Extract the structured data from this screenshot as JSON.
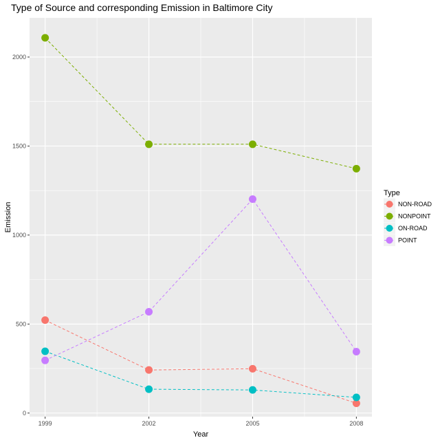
{
  "chart_data": {
    "type": "line",
    "title": "Type of Source and corresponding Emission in Baltimore City",
    "xlabel": "Year",
    "ylabel": "Emission",
    "x": [
      1999,
      2002,
      2005,
      2008
    ],
    "x_tick_labels": [
      "1999",
      "2002",
      "2005",
      "2008"
    ],
    "y_ticks": [
      0,
      500,
      1000,
      1500,
      2000
    ],
    "y_tick_labels": [
      "0",
      "500",
      "1000",
      "1500",
      "2000"
    ],
    "xlim": [
      1998.55,
      2008.45
    ],
    "ylim": [
      -20,
      2220
    ],
    "grid": true,
    "line_style": "dashed",
    "legend": {
      "title": "Type",
      "placement": "right"
    },
    "series": [
      {
        "name": "NON-ROAD",
        "color": "#F8766D",
        "values": [
          522,
          242,
          249,
          55
        ]
      },
      {
        "name": "NONPOINT",
        "color": "#7CAE00",
        "values": [
          2108,
          1510,
          1510,
          1373
        ]
      },
      {
        "name": "ON-ROAD",
        "color": "#00BFC4",
        "values": [
          347,
          134,
          130,
          88
        ]
      },
      {
        "name": "POINT",
        "color": "#C77CFF",
        "values": [
          296,
          569,
          1202,
          345
        ]
      }
    ]
  }
}
